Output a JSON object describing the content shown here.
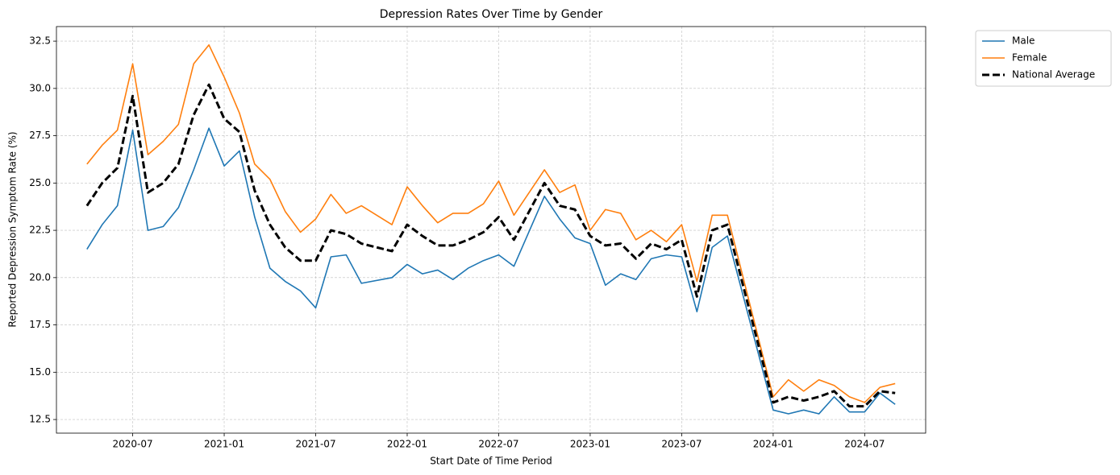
{
  "chart_data": {
    "type": "line",
    "title": "Depression Rates Over Time by Gender",
    "xlabel": "Start Date of Time Period",
    "ylabel": "Reported Depression Symptom Rate (%)",
    "x": [
      "2020-04",
      "2020-05",
      "2020-06",
      "2020-07",
      "2020-08",
      "2020-09",
      "2020-10",
      "2020-11",
      "2020-12",
      "2021-01",
      "2021-02",
      "2021-03",
      "2021-04",
      "2021-05",
      "2021-06",
      "2021-07",
      "2021-08",
      "2021-09",
      "2021-10",
      "2021-12",
      "2022-01",
      "2022-02",
      "2022-03",
      "2022-04",
      "2022-05",
      "2022-06",
      "2022-07",
      "2022-08",
      "2022-10",
      "2022-11",
      "2022-12",
      "2023-01",
      "2023-02",
      "2023-03",
      "2023-04",
      "2023-05",
      "2023-06",
      "2023-07",
      "2023-08",
      "2023-09",
      "2023-10",
      "2024-01",
      "2024-02",
      "2024-03",
      "2024-04",
      "2024-05",
      "2024-06",
      "2024-07",
      "2024-08",
      "2024-09"
    ],
    "series": [
      {
        "name": "Male",
        "color": "#1f77b4",
        "linestyle": "solid",
        "values": [
          21.5,
          22.8,
          23.8,
          27.8,
          22.5,
          22.7,
          23.7,
          25.7,
          27.9,
          25.9,
          26.7,
          23.2,
          20.5,
          19.8,
          19.3,
          18.4,
          21.1,
          21.2,
          19.7,
          20.0,
          20.7,
          20.2,
          20.4,
          19.9,
          20.5,
          20.9,
          21.2,
          20.6,
          24.3,
          23.1,
          22.1,
          21.8,
          19.6,
          20.2,
          19.9,
          21.0,
          21.2,
          21.1,
          18.2,
          21.6,
          22.2,
          13.0,
          12.8,
          13.0,
          12.8,
          13.7,
          12.9,
          12.9,
          13.9,
          13.3
        ]
      },
      {
        "name": "Female",
        "color": "#ff7f0e",
        "linestyle": "solid",
        "values": [
          26.0,
          27.0,
          27.8,
          31.3,
          26.5,
          27.2,
          28.1,
          31.3,
          32.3,
          30.6,
          28.7,
          26.0,
          25.2,
          23.5,
          22.4,
          23.1,
          24.4,
          23.4,
          23.8,
          22.8,
          24.8,
          23.8,
          22.9,
          23.4,
          23.4,
          23.9,
          25.1,
          23.3,
          25.7,
          24.5,
          24.9,
          22.5,
          23.6,
          23.4,
          22.0,
          22.5,
          21.9,
          22.8,
          19.8,
          23.3,
          23.3,
          13.7,
          14.6,
          14.0,
          14.6,
          14.3,
          13.7,
          13.4,
          14.2,
          14.4
        ]
      },
      {
        "name": "National Average",
        "color": "#000000",
        "linestyle": "dashed",
        "values": [
          23.8,
          25.0,
          25.8,
          29.6,
          24.5,
          25.0,
          26.0,
          28.6,
          30.2,
          28.4,
          27.7,
          24.6,
          22.8,
          21.6,
          20.9,
          20.9,
          22.5,
          22.3,
          21.8,
          21.4,
          22.8,
          22.2,
          21.7,
          21.7,
          22.0,
          22.4,
          23.2,
          22.0,
          25.0,
          23.8,
          23.6,
          22.2,
          21.7,
          21.8,
          21.0,
          21.8,
          21.5,
          22.0,
          19.0,
          22.5,
          22.8,
          13.4,
          13.7,
          13.5,
          13.7,
          14.0,
          13.2,
          13.2,
          14.0,
          13.9
        ]
      }
    ],
    "xlim": [
      "2020-02",
      "2024-11"
    ],
    "xticks": [
      "2020-07",
      "2021-01",
      "2021-07",
      "2022-01",
      "2022-07",
      "2023-01",
      "2023-07",
      "2024-01",
      "2024-07"
    ],
    "ylim": [
      11.78,
      33.27
    ],
    "yticks": [
      {
        "value": 12.5,
        "label": "12.5"
      },
      {
        "value": 15,
        "label": "15.0"
      },
      {
        "value": 17.5,
        "label": "17.5"
      },
      {
        "value": 20,
        "label": "20.0"
      },
      {
        "value": 22.5,
        "label": "22.5"
      },
      {
        "value": 25,
        "label": "25.0"
      },
      {
        "value": 27.5,
        "label": "27.5"
      },
      {
        "value": 30,
        "label": "30.0"
      },
      {
        "value": 32.5,
        "label": "32.5"
      }
    ],
    "grid": true,
    "legend": "outside upper right"
  }
}
